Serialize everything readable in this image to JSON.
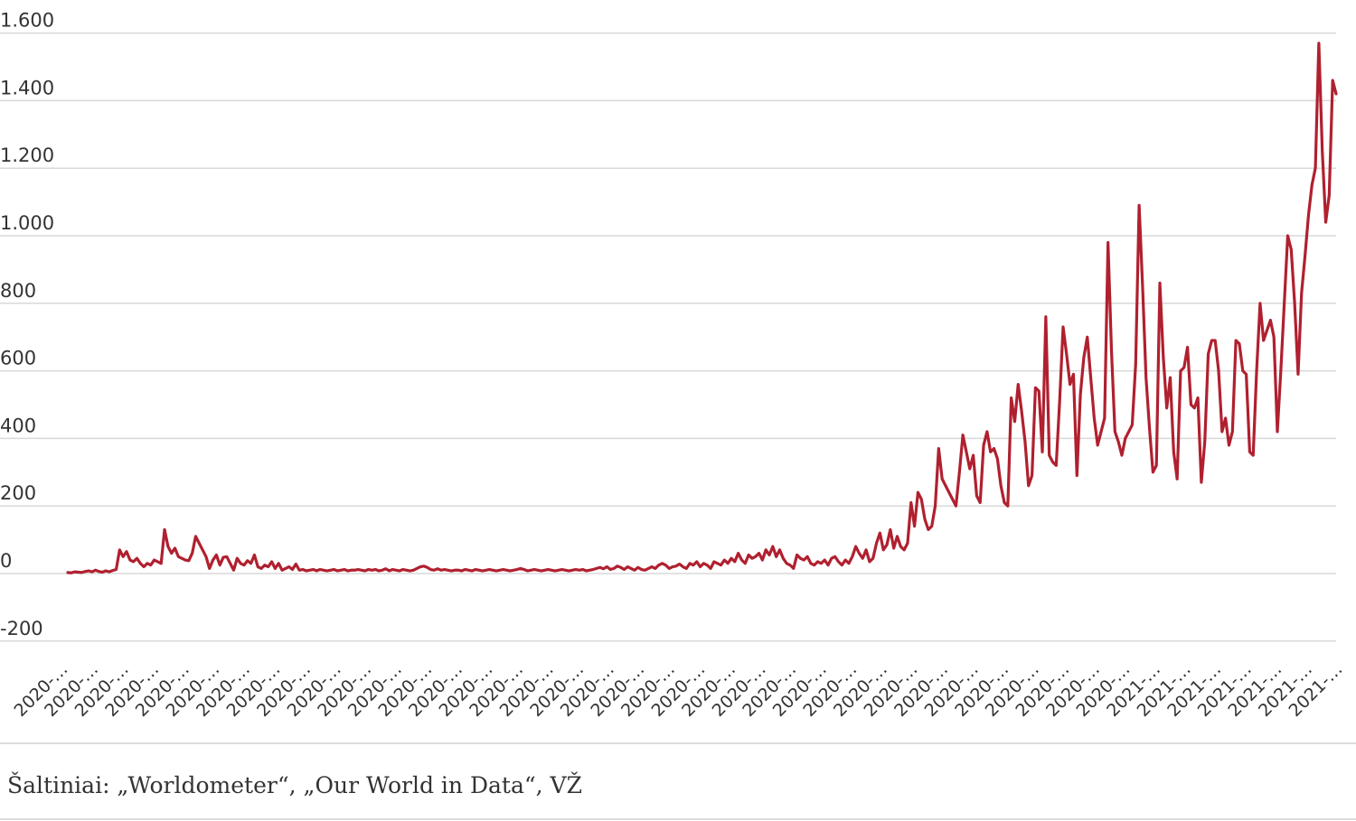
{
  "chart_data": {
    "type": "line",
    "title": "",
    "xlabel": "",
    "ylabel": "",
    "ylim": [
      -200,
      1600
    ],
    "y_ticks": [
      -200,
      0,
      200,
      400,
      600,
      800,
      1000,
      1200,
      1400,
      1600
    ],
    "y_tick_labels": [
      "-200",
      "0",
      "200",
      "400",
      "600",
      "800",
      "1.000",
      "1.200",
      "1.400",
      "1.600"
    ],
    "x_tick_labels": [
      "2020-…",
      "2020-…",
      "2020-…",
      "2020-…",
      "2020-…",
      "2020-…",
      "2020-…",
      "2020-…",
      "2020-…",
      "2020-…",
      "2020-…",
      "2020-…",
      "2020-…",
      "2020-…",
      "2020-…",
      "2020-…",
      "2020-…",
      "2020-…",
      "2020-…",
      "2020-…",
      "2020-…",
      "2020-…",
      "2020-…",
      "2020-…",
      "2020-…",
      "2020-…",
      "2020-…",
      "2020-…",
      "2020-…",
      "2020-…",
      "2020-…",
      "2020-…",
      "2020-…",
      "2020-…",
      "2020-…",
      "2020-…",
      "2021-…",
      "2021-…",
      "2021-…",
      "2021-…",
      "2021-…",
      "2021-…",
      "2021-…"
    ],
    "grid": true,
    "legend": "none",
    "series": [
      {
        "color": "#b0202f",
        "values": [
          3,
          2,
          5,
          4,
          3,
          6,
          8,
          5,
          10,
          6,
          4,
          8,
          5,
          9,
          12,
          70,
          50,
          65,
          40,
          35,
          45,
          30,
          20,
          30,
          25,
          40,
          35,
          30,
          130,
          80,
          60,
          75,
          50,
          45,
          40,
          38,
          60,
          110,
          90,
          70,
          50,
          15,
          40,
          55,
          25,
          48,
          50,
          30,
          10,
          45,
          30,
          25,
          38,
          30,
          55,
          20,
          15,
          25,
          20,
          35,
          15,
          30,
          10,
          15,
          20,
          12,
          28,
          10,
          12,
          8,
          10,
          12,
          8,
          12,
          10,
          8,
          10,
          12,
          8,
          10,
          12,
          8,
          10,
          10,
          12,
          10,
          8,
          12,
          10,
          12,
          8,
          10,
          14,
          8,
          12,
          10,
          8,
          12,
          10,
          8,
          10,
          15,
          20,
          22,
          18,
          12,
          10,
          14,
          10,
          12,
          10,
          8,
          10,
          10,
          8,
          12,
          10,
          8,
          12,
          10,
          8,
          10,
          12,
          10,
          8,
          10,
          12,
          10,
          8,
          10,
          12,
          15,
          12,
          8,
          10,
          12,
          10,
          8,
          10,
          12,
          10,
          8,
          10,
          12,
          10,
          8,
          10,
          12,
          10,
          12,
          8,
          10,
          12,
          15,
          18,
          14,
          20,
          12,
          15,
          22,
          18,
          12,
          20,
          15,
          10,
          18,
          12,
          10,
          15,
          20,
          15,
          25,
          30,
          25,
          15,
          20,
          22,
          28,
          20,
          15,
          30,
          25,
          35,
          20,
          30,
          25,
          15,
          35,
          30,
          25,
          40,
          30,
          45,
          35,
          60,
          40,
          30,
          55,
          45,
          50,
          60,
          40,
          70,
          55,
          80,
          50,
          70,
          45,
          30,
          25,
          15,
          55,
          45,
          40,
          50,
          30,
          25,
          35,
          30,
          40,
          25,
          45,
          50,
          35,
          25,
          40,
          30,
          50,
          80,
          60,
          45,
          70,
          35,
          45,
          90,
          120,
          70,
          85,
          130,
          75,
          110,
          80,
          70,
          90,
          210,
          140,
          240,
          220,
          160,
          130,
          140,
          200,
          370,
          280,
          260,
          240,
          220,
          200,
          300,
          410,
          360,
          310,
          350,
          230,
          210,
          380,
          420,
          360,
          370,
          340,
          260,
          210,
          200,
          520,
          450,
          560,
          480,
          390,
          260,
          290,
          550,
          540,
          360,
          760,
          350,
          330,
          320,
          510,
          730,
          650,
          560,
          590,
          290,
          530,
          640,
          700,
          580,
          460,
          380,
          420,
          460,
          980,
          660,
          420,
          390,
          350,
          400,
          420,
          440,
          620,
          1090,
          850,
          580,
          430,
          300,
          320,
          860,
          640,
          490,
          580,
          360,
          280,
          600,
          610,
          670,
          500,
          490,
          520,
          270,
          390,
          650,
          690,
          690,
          600,
          420,
          460,
          380,
          420,
          690,
          680,
          600,
          590,
          360,
          350,
          600,
          800,
          690,
          720,
          750,
          700,
          420,
          600,
          800,
          1000,
          960,
          800,
          590,
          830,
          940,
          1060,
          1150,
          1200,
          1570,
          1250,
          1040,
          1120,
          1460,
          1420
        ]
      }
    ]
  },
  "source": "Šaltiniai: „Worldometer“, „Our World in Data“, VŽ"
}
